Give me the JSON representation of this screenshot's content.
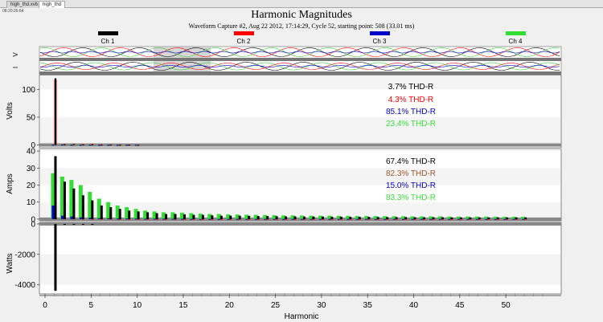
{
  "tabs": [
    {
      "label": "high_thd.xvb",
      "active": false
    },
    {
      "label": "high_thd",
      "active": true
    }
  ],
  "timestamp": "08:20:26:64",
  "title": "Harmonic Magnitudes",
  "subtitle": "Waveform Capture #2, Aug 22 2012, 17:14:29, Cycle 52,  starting point: 508  (33.01 ms)",
  "channels": [
    {
      "label": "Ch 1",
      "color": "#000000"
    },
    {
      "label": "Ch 2",
      "color": "#ff0000"
    },
    {
      "label": "Ch 3",
      "color": "#0000cc"
    },
    {
      "label": "Ch 4",
      "color": "#33dd33"
    }
  ],
  "wave_labels": {
    "voltage": "V",
    "current": "I"
  },
  "chart_data": [
    {
      "type": "bar",
      "name": "volts-panel",
      "ylabel": "Volts",
      "ylim": [
        -5,
        125
      ],
      "yticks": [
        0,
        50,
        100
      ],
      "x": [
        1,
        2,
        3,
        4,
        5,
        6,
        7,
        8,
        9,
        10
      ],
      "series": [
        {
          "channel": "Ch 1",
          "values": [
            120,
            1.5,
            1.5,
            0.8,
            1,
            0.5,
            0.6,
            0.3,
            0.3,
            0.2
          ]
        },
        {
          "channel": "Ch 2",
          "values": [
            118,
            1,
            1.8,
            1.2,
            2,
            0.6,
            0.8,
            0.3,
            0.5,
            0.2
          ]
        },
        {
          "channel": "Ch 3",
          "values": [
            0.3,
            0.5,
            0.2,
            0.2,
            0.2,
            0.1,
            0.1,
            0.1,
            0.1,
            0.1
          ]
        },
        {
          "channel": "Ch 4",
          "values": [
            0.4,
            0.3,
            0.3,
            0.2,
            0.2,
            0.1,
            0.1,
            0.1,
            0.1,
            0.1
          ]
        }
      ],
      "thd": [
        {
          "text": "3.7% THD-R",
          "color": "#000000"
        },
        {
          "text": "4.3% THD-R",
          "color": "#ff0000"
        },
        {
          "text": "85.1% THD-R",
          "color": "#0000cc"
        },
        {
          "text": "23.4% THD-R",
          "color": "#33dd33"
        }
      ]
    },
    {
      "type": "bar",
      "name": "amps-panel",
      "ylabel": "Amps",
      "ylim": [
        -1,
        41
      ],
      "yticks": [
        0,
        10,
        20,
        30,
        40
      ],
      "x": [
        1,
        2,
        3,
        4,
        5,
        6,
        7,
        8,
        9,
        10,
        11,
        12,
        13,
        14,
        15,
        16,
        17,
        18,
        19,
        20,
        21,
        22,
        23,
        24,
        25,
        26,
        27,
        28,
        29,
        30,
        31,
        32,
        33,
        34,
        35,
        36,
        37,
        38,
        39,
        40,
        41,
        42,
        43,
        44,
        45,
        46,
        47,
        48,
        49,
        50,
        51,
        52
      ],
      "series": [
        {
          "channel": "Ch 1",
          "values": [
            37,
            22,
            18,
            14,
            11,
            8,
            7,
            6,
            5,
            4.5,
            4,
            3.5,
            3,
            3,
            2.8,
            2.5,
            2.5,
            2.2,
            2,
            2,
            2,
            1.9,
            1.8,
            1.8,
            1.7,
            1.6,
            1.6,
            1.5,
            1.5,
            1.5,
            1.4,
            1.4,
            1.3,
            1.3,
            1.3,
            1.2,
            1.2,
            1.2,
            1.2,
            1.1,
            1.1,
            1.1,
            1.1,
            1,
            1,
            1,
            1,
            1,
            1,
            1,
            1,
            1
          ]
        },
        {
          "channel": "Ch 2",
          "values": [
            0.4,
            0.3,
            0.3,
            0.2,
            0.2,
            0.2,
            0.2,
            0.1,
            0.1,
            0.1,
            0.1,
            0.1,
            0.1,
            0.1,
            0.1,
            0.1,
            0.1,
            0.1,
            0.1,
            0.1,
            0.1,
            0.1,
            0.1,
            0.1,
            0.1,
            0.1,
            0.1,
            0.1,
            0.1,
            0.1,
            0.1,
            0.1,
            0.1,
            0.1,
            0.1,
            0.1,
            0.1,
            0.1,
            0.1,
            0.1,
            0.1,
            0.1,
            0.1,
            0.1,
            0.1,
            0.1,
            0.1,
            0.1,
            0.1,
            0.1,
            0.1,
            0.1
          ]
        },
        {
          "channel": "Ch 3",
          "values": [
            8,
            2,
            1.5,
            1,
            0.8,
            0.5,
            0.5,
            0.3,
            0.3,
            0.3,
            0.2,
            0.2,
            0.2,
            0.2,
            0.2,
            0.1,
            0.1,
            0.1,
            0.1,
            0.1,
            0.1,
            0.1,
            0.1,
            0.1,
            0.1,
            0.1,
            0.1,
            0.1,
            0.1,
            0.1,
            0.1,
            0.1,
            0.1,
            0.1,
            0.1,
            0.1,
            0.1,
            0.1,
            0.1,
            0.1,
            0.1,
            0.1,
            0.1,
            0.1,
            0.1,
            0.1,
            0.1,
            0.1,
            0.1,
            0.1,
            0.1,
            0.1
          ]
        },
        {
          "channel": "Ch 4",
          "values": [
            27,
            25,
            23,
            20,
            16,
            12,
            10,
            8,
            7,
            6,
            5,
            4.5,
            4,
            4,
            3.8,
            3.5,
            3.2,
            3,
            3,
            2.8,
            2.7,
            2.6,
            2.5,
            2.4,
            2.3,
            2.2,
            2.2,
            2.1,
            2,
            2,
            2,
            1.9,
            1.9,
            1.8,
            1.8,
            1.8,
            1.7,
            1.7,
            1.7,
            1.6,
            1.6,
            1.6,
            1.6,
            1.5,
            1.5,
            1.5,
            1.5,
            1.5,
            1.4,
            1.4,
            1.4,
            1.4
          ]
        }
      ],
      "thd": [
        {
          "text": "67.4% THD-R",
          "color": "#000000"
        },
        {
          "text": "82.3% THD-R",
          "color": "#a0522d"
        },
        {
          "text": "15.0% THD-R",
          "color": "#0000cc"
        },
        {
          "text": "83.3% THD-R",
          "color": "#33dd33"
        }
      ]
    },
    {
      "type": "bar",
      "name": "watts-panel",
      "ylabel": "Watts",
      "xlabel": "Harmonic",
      "ylim": [
        -4600,
        100
      ],
      "yticks": [
        0,
        -2000,
        -4000
      ],
      "xlim": [
        0,
        54
      ],
      "xticks": [
        0,
        5,
        10,
        15,
        20,
        25,
        30,
        35,
        40,
        45,
        50
      ],
      "x": [
        1,
        2,
        3,
        4,
        5
      ],
      "series": [
        {
          "channel": "Ch 1",
          "values": [
            -4400,
            -30,
            -25,
            -20,
            -15
          ]
        }
      ]
    }
  ]
}
